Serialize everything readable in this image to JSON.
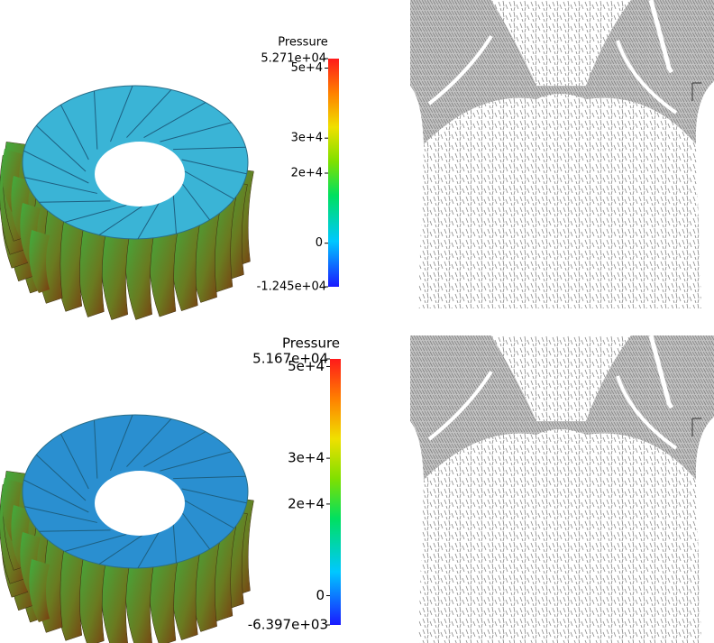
{
  "panels": [
    {
      "colorbar": {
        "title": "Pressure",
        "max": {
          "value": 52710,
          "label": "5.271e+04"
        },
        "min": {
          "value": -12450,
          "label": "-1.245e+04"
        },
        "ticks": [
          {
            "value": 50000,
            "label": "5e+4"
          },
          {
            "value": 30000,
            "label": "3e+4"
          },
          {
            "value": 20000,
            "label": "2e+4"
          },
          0
        ]
      }
    },
    {
      "colorbar": {
        "title": "Pressure",
        "max": {
          "value": 51670,
          "label": "5.167e+04"
        },
        "min": {
          "value": -6397,
          "label": "-6.397e+03"
        },
        "ticks": [
          {
            "value": 50000,
            "label": "5e+4"
          },
          {
            "value": 30000,
            "label": "3e+4"
          },
          {
            "value": 20000,
            "label": "2e+4"
          },
          0
        ]
      }
    }
  ]
}
